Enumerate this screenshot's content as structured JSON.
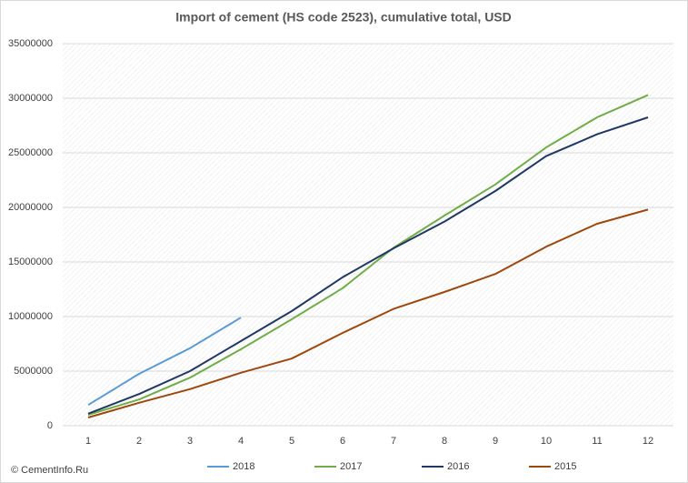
{
  "chart_data": {
    "type": "line",
    "title": "Import of cement (HS code 2523), cumulative total, USD",
    "source": "© CementInfo.Ru",
    "categories": [
      1,
      2,
      3,
      4,
      5,
      6,
      7,
      8,
      9,
      10,
      11,
      12
    ],
    "series": [
      {
        "name": "2018",
        "color": "#5b9bd5",
        "values": [
          1900000,
          4750000,
          7100000,
          9900000,
          null,
          null,
          null,
          null,
          null,
          null,
          null,
          null
        ]
      },
      {
        "name": "2017",
        "color": "#70ad47",
        "values": [
          1000000,
          2400000,
          4400000,
          7000000,
          9750000,
          12600000,
          16300000,
          19250000,
          22100000,
          25500000,
          28250000,
          30300000
        ]
      },
      {
        "name": "2016",
        "color": "#203864",
        "values": [
          1100000,
          2900000,
          5000000,
          7750000,
          10500000,
          13600000,
          16250000,
          18700000,
          21500000,
          24700000,
          26700000,
          28250000
        ]
      },
      {
        "name": "2015",
        "color": "#9e480e",
        "values": [
          750000,
          2100000,
          3350000,
          4850000,
          6150000,
          8500000,
          10700000,
          12250000,
          13900000,
          16400000,
          18500000,
          19800000
        ]
      }
    ],
    "ylim": [
      0,
      35000000
    ],
    "yticks": [
      0,
      5000000,
      10000000,
      15000000,
      20000000,
      25000000,
      30000000,
      35000000
    ],
    "grid": true,
    "legend": "bottom"
  }
}
